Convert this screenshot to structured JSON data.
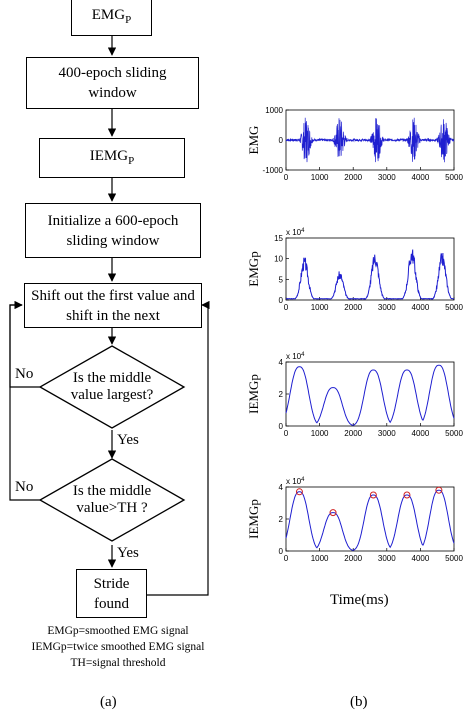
{
  "flowchart": {
    "emgp": "EMGP",
    "sliding": "400-epoch sliding window",
    "iemgp": "IEMGP",
    "init": "Initialize a 600-epoch sliding window",
    "shift": "Shift out the first value and shift in the next",
    "decision1": "Is the middle value largest?",
    "decision2": "Is the middle value>TH ?",
    "stride": "Stride found",
    "no1": "No",
    "no2": "No",
    "yes1": "Yes",
    "yes2": "Yes"
  },
  "legend": [
    "EMGp=smoothed EMG signal",
    "IEMGp=twice smoothed EMG signal",
    "TH=signal threshold"
  ],
  "captions": {
    "a": "(a)",
    "b": "(b)"
  },
  "xlabel": "Time(ms)",
  "chart_data": [
    {
      "type": "line",
      "ylabel": "EMG",
      "xlim": [
        0,
        5000
      ],
      "ylim": [
        -1000,
        1000
      ],
      "xticks": [
        "0",
        "1000",
        "2000",
        "3000",
        "4000",
        "5000"
      ],
      "yticks": [
        "1000",
        "0",
        "-1000"
      ],
      "bursts_ms": [
        600,
        1600,
        2700,
        3800,
        4700
      ],
      "amplitude": 800,
      "color": "#1f1fd0"
    },
    {
      "type": "line",
      "ylabel": "EMGp",
      "xlim": [
        0,
        5000
      ],
      "ylim": [
        0,
        15
      ],
      "scale_label": "x 10",
      "scale_exp": "4",
      "xticks": [
        "0",
        "1000",
        "2000",
        "3000",
        "4000",
        "5000"
      ],
      "yticks": [
        "15",
        "10",
        "5",
        "0"
      ],
      "peaks": [
        {
          "x": 550,
          "y": 9
        },
        {
          "x": 1600,
          "y": 6
        },
        {
          "x": 2650,
          "y": 10
        },
        {
          "x": 3750,
          "y": 11
        },
        {
          "x": 4650,
          "y": 10
        }
      ],
      "color": "#1f1fd0"
    },
    {
      "type": "line",
      "ylabel": "IEMGp",
      "xlim": [
        0,
        5000
      ],
      "ylim": [
        0,
        4
      ],
      "scale_label": "x 10",
      "scale_exp": "4",
      "xticks": [
        "0",
        "1000",
        "2000",
        "3000",
        "4000",
        "5000"
      ],
      "yticks": [
        "4",
        "2",
        "0"
      ],
      "peaks": [
        {
          "x": 400,
          "y": 3.7
        },
        {
          "x": 1400,
          "y": 2.4
        },
        {
          "x": 2600,
          "y": 3.5
        },
        {
          "x": 3600,
          "y": 3.5
        },
        {
          "x": 4550,
          "y": 3.8
        }
      ],
      "color": "#1f1fd0"
    },
    {
      "type": "line",
      "ylabel": "IEMGp",
      "xlim": [
        0,
        5000
      ],
      "ylim": [
        0,
        4
      ],
      "scale_label": "x 10",
      "scale_exp": "4",
      "xticks": [
        "0",
        "1000",
        "2000",
        "3000",
        "4000",
        "5000"
      ],
      "yticks": [
        "4",
        "2",
        "0"
      ],
      "peaks": [
        {
          "x": 400,
          "y": 3.7
        },
        {
          "x": 1400,
          "y": 2.4
        },
        {
          "x": 2600,
          "y": 3.5
        },
        {
          "x": 3600,
          "y": 3.5
        },
        {
          "x": 4550,
          "y": 3.8
        }
      ],
      "markers": [
        {
          "x": 400,
          "y": 3.7
        },
        {
          "x": 1400,
          "y": 2.4
        },
        {
          "x": 2600,
          "y": 3.5
        },
        {
          "x": 3600,
          "y": 3.5
        },
        {
          "x": 4550,
          "y": 3.8
        }
      ],
      "color": "#1f1fd0",
      "marker_color": "#d02020"
    }
  ]
}
